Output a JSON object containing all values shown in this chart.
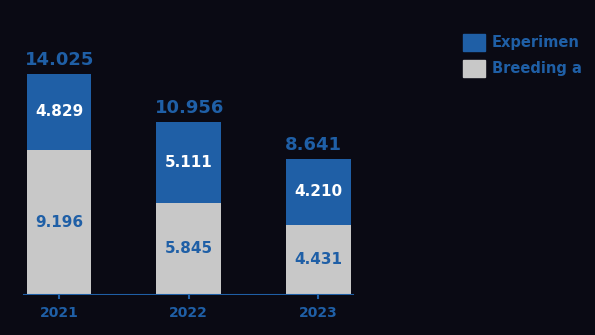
{
  "years": [
    "2021",
    "2022",
    "2023"
  ],
  "experimental": [
    4829,
    5111,
    4210
  ],
  "breeding": [
    9196,
    5845,
    4431
  ],
  "totals": [
    14025,
    10956,
    8641
  ],
  "experimental_color": "#1F5FA6",
  "breeding_color": "#C8C8C8",
  "axis_color": "#1F5FA6",
  "text_color_blue": "#1F5FA6",
  "text_color_white": "#FFFFFF",
  "background_color": "#0A0A14",
  "bar_width": 0.55,
  "legend_experimental": "Experimen",
  "legend_breeding": "Breeding a",
  "ylim": [
    0,
    17000
  ],
  "figsize": [
    5.95,
    3.35
  ],
  "dpi": 100
}
